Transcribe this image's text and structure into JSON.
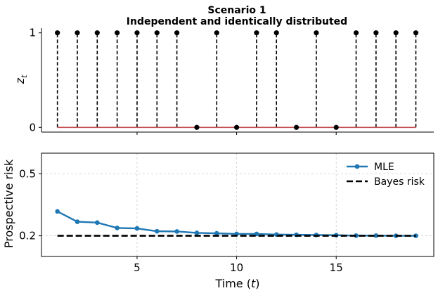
{
  "chart_data": [
    {
      "type": "stem",
      "title": "Scenario 1",
      "subtitle": "Independent and identically distributed",
      "ylabel": "z_t",
      "yticks": [
        0,
        1
      ],
      "x": [
        1,
        2,
        3,
        4,
        5,
        6,
        7,
        8,
        9,
        10,
        11,
        12,
        13,
        14,
        15,
        16,
        17,
        18,
        19
      ],
      "values": [
        1,
        1,
        1,
        1,
        1,
        1,
        1,
        0,
        1,
        0,
        1,
        1,
        0,
        1,
        0,
        1,
        1,
        1,
        1
      ],
      "stem_style": "dashed",
      "stem_color": "#000000",
      "marker_color": "#000000",
      "baseline_color": "#c44e52",
      "xlim": [
        0.2,
        19.9
      ],
      "ylim": [
        -0.05,
        1.05
      ],
      "spines": "left-bottom",
      "grid": false
    },
    {
      "type": "line",
      "xlabel": "Time (t)",
      "ylabel": "Prospective risk",
      "xticks": [
        5,
        10,
        15
      ],
      "yticks": [
        0.2,
        0.5
      ],
      "xlim": [
        0.2,
        19.9
      ],
      "ylim": [
        0.1,
        0.6
      ],
      "grid": true,
      "legend_position": "upper-right",
      "series": [
        {
          "name": "MLE",
          "color": "#1f77b4",
          "style": "solid-with-markers",
          "x": [
            1,
            2,
            3,
            4,
            5,
            6,
            7,
            8,
            9,
            10,
            11,
            12,
            13,
            14,
            15,
            16,
            17,
            18,
            19
          ],
          "y": [
            0.318,
            0.268,
            0.264,
            0.238,
            0.236,
            0.222,
            0.221,
            0.214,
            0.212,
            0.209,
            0.209,
            0.206,
            0.205,
            0.204,
            0.203,
            0.201,
            0.201,
            0.2,
            0.2
          ]
        },
        {
          "name": "Bayes risk",
          "color": "#000000",
          "style": "dashed",
          "x": [
            1,
            19
          ],
          "y": [
            0.2,
            0.2
          ]
        }
      ]
    }
  ]
}
